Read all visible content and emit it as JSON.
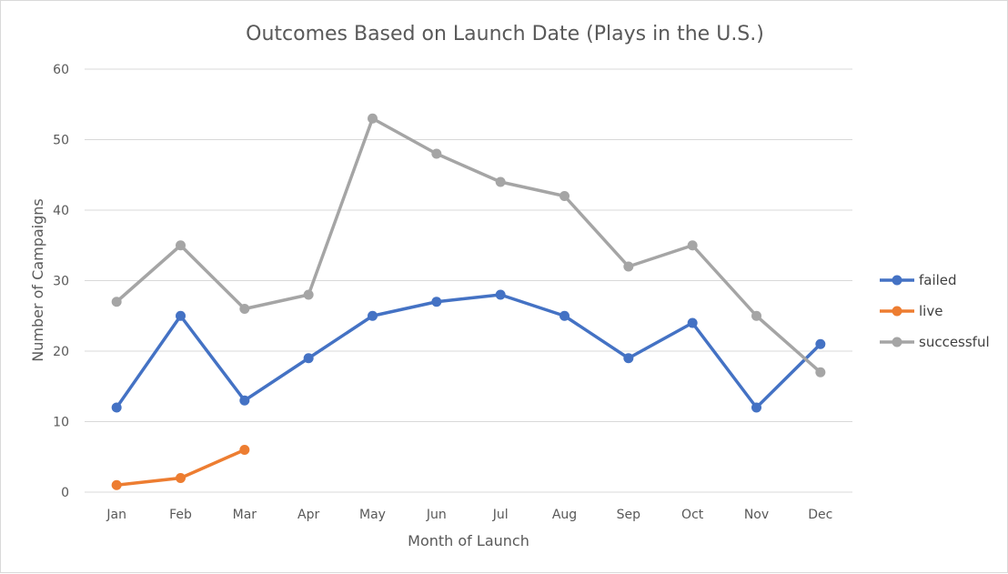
{
  "chart_data": {
    "type": "line",
    "title": "Outcomes Based on Launch Date (Plays in the U.S.)",
    "xlabel": "Month of Launch",
    "ylabel": "Number of Campaigns",
    "categories": [
      "Jan",
      "Feb",
      "Mar",
      "Apr",
      "May",
      "Jun",
      "Jul",
      "Aug",
      "Sep",
      "Oct",
      "Nov",
      "Dec"
    ],
    "ylim": [
      0,
      60
    ],
    "yticks": [
      0,
      10,
      20,
      30,
      40,
      50,
      60
    ],
    "grid": true,
    "legend_position": "right",
    "series": [
      {
        "name": "failed",
        "color": "#4472C4",
        "values": [
          12,
          25,
          13,
          19,
          25,
          27,
          28,
          25,
          19,
          24,
          12,
          21
        ]
      },
      {
        "name": "live",
        "color": "#ED7D31",
        "values": [
          1,
          2,
          6,
          null,
          null,
          null,
          null,
          null,
          null,
          null,
          null,
          null
        ]
      },
      {
        "name": "successful",
        "color": "#A5A5A5",
        "values": [
          27,
          35,
          26,
          28,
          53,
          48,
          44,
          42,
          32,
          35,
          25,
          17
        ]
      }
    ]
  }
}
